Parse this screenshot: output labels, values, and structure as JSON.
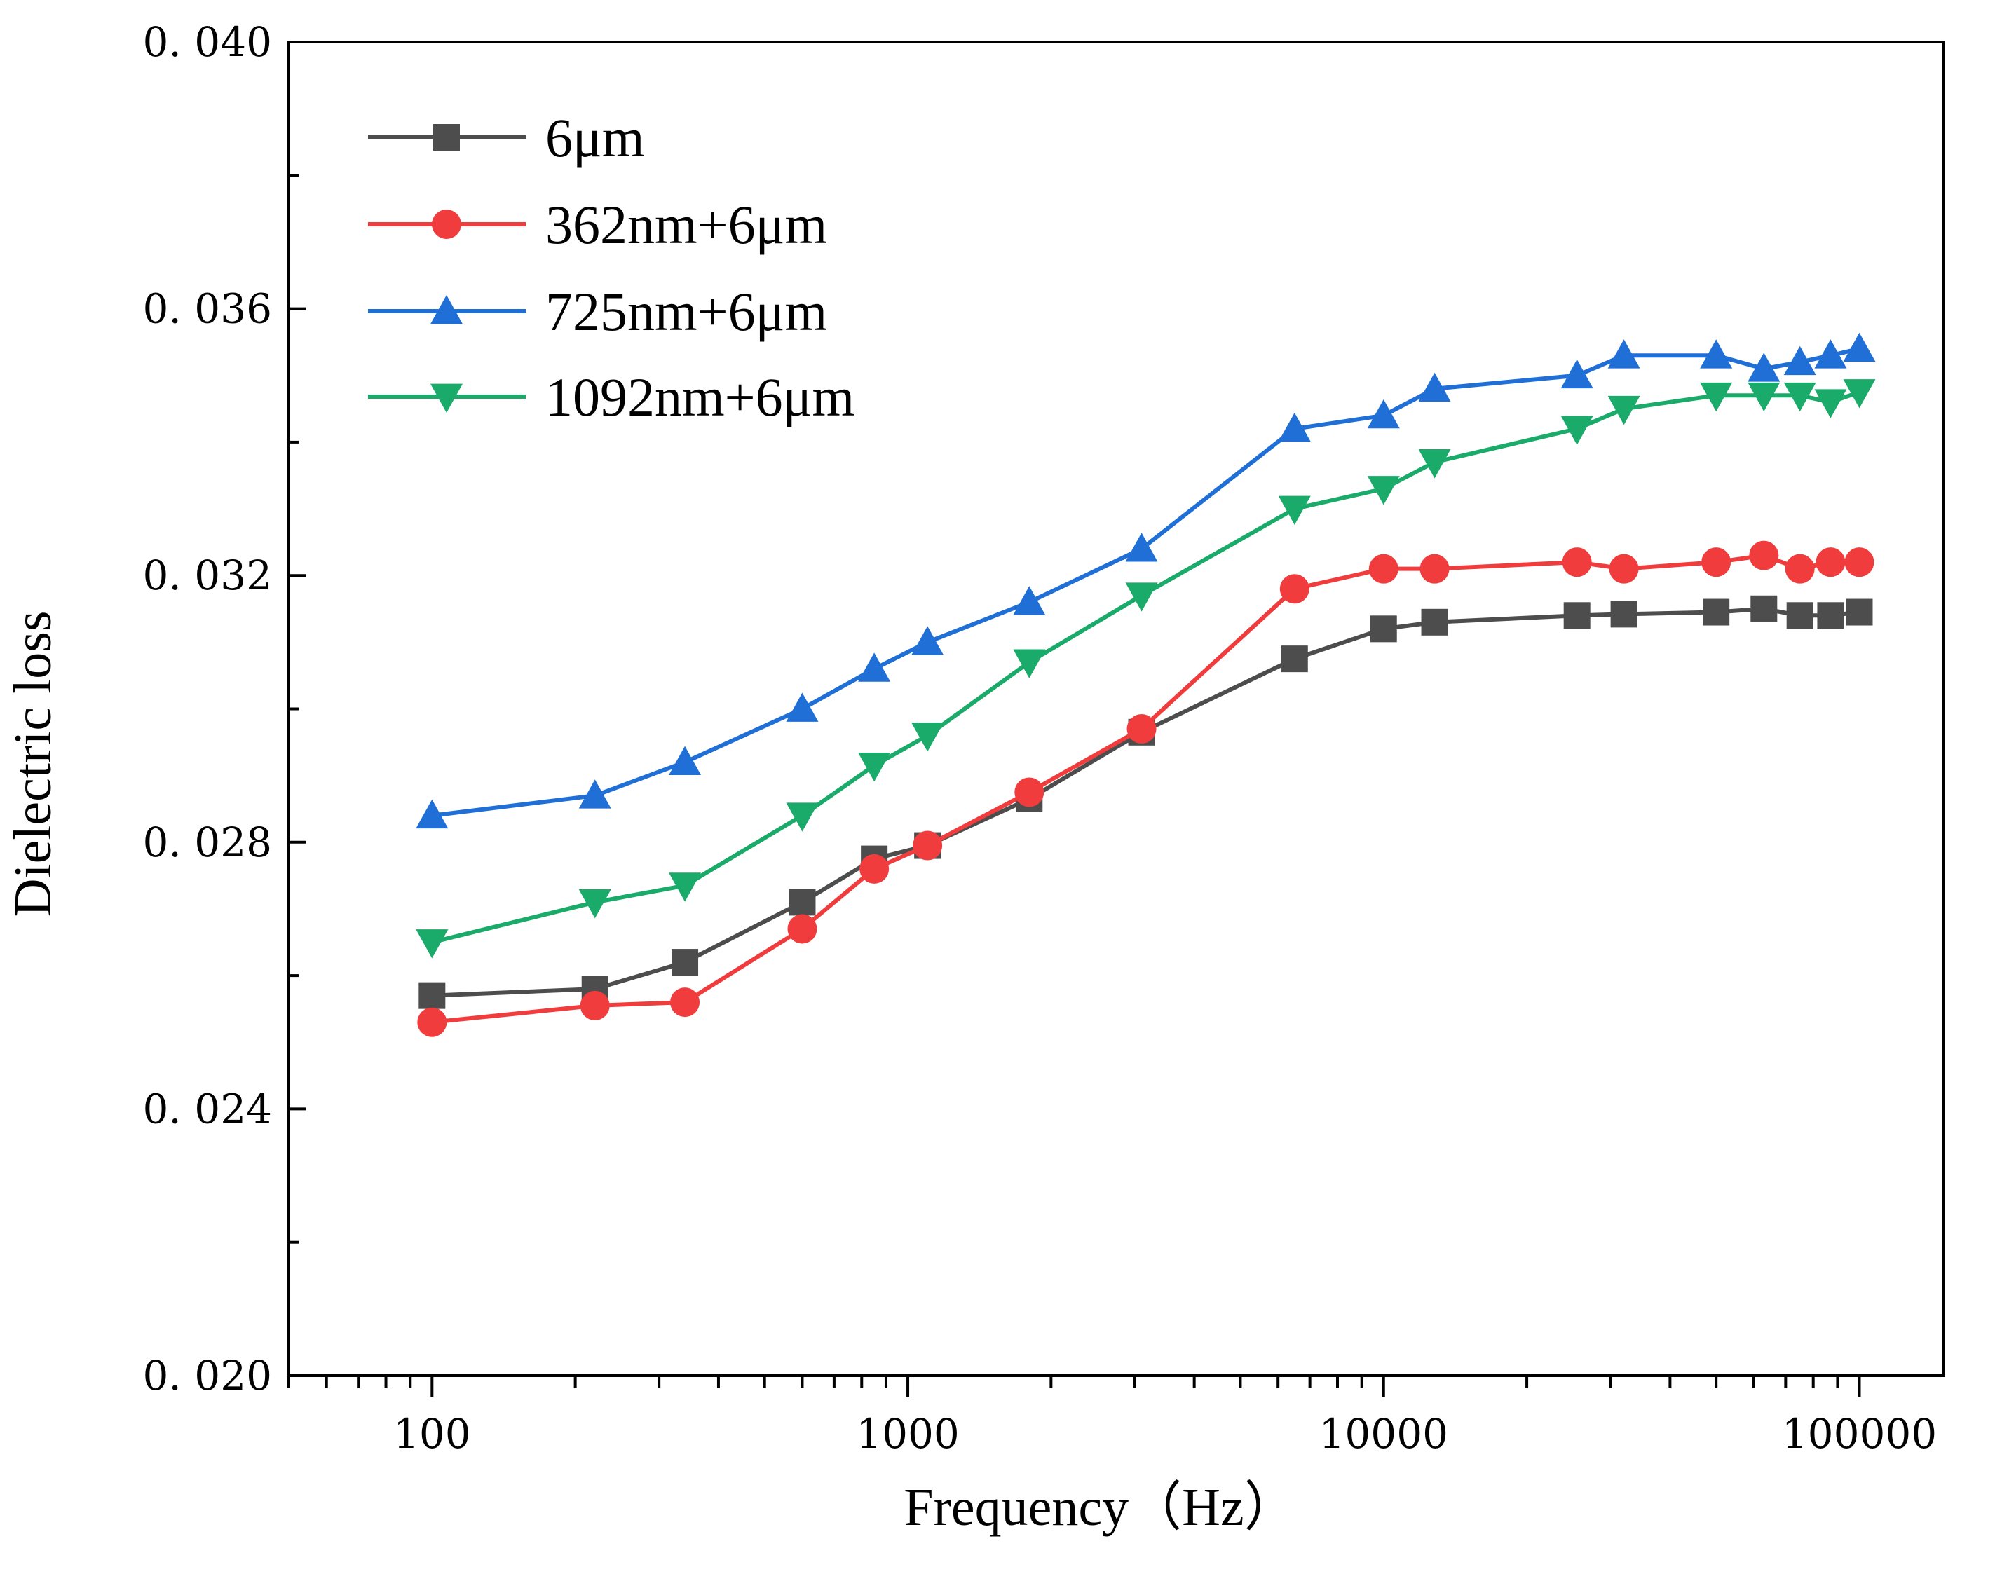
{
  "chart_data": {
    "type": "line",
    "title": "",
    "xlabel": "Frequency（Hz）",
    "ylabel": "Dielectric loss",
    "xscale": "log",
    "xlim": [
      50,
      150000
    ],
    "ylim": [
      0.02,
      0.04
    ],
    "x_ticks": [
      100,
      1000,
      10000,
      100000
    ],
    "x_tick_labels": [
      "100",
      "1000",
      "10000",
      "100000"
    ],
    "y_ticks": [
      0.02,
      0.024,
      0.028,
      0.032,
      0.036,
      0.04
    ],
    "y_tick_labels": [
      "0. 020",
      "0. 024",
      "0. 028",
      "0. 032",
      "0. 036",
      "0. 040"
    ],
    "grid": false,
    "legend_position": "top-left",
    "x": [
      100,
      220,
      340,
      600,
      850,
      1100,
      1800,
      3100,
      6500,
      10000,
      12800,
      25500,
      32000,
      50000,
      63000,
      75000,
      87000,
      100000
    ],
    "series": [
      {
        "name": "6μm",
        "color": "#4d4d4d",
        "marker": "square",
        "values": [
          0.0257,
          0.0258,
          0.0262,
          0.0271,
          0.02775,
          0.02795,
          0.02865,
          0.02965,
          0.03075,
          0.0312,
          0.0313,
          0.0314,
          0.03142,
          0.03145,
          0.0315,
          0.0314,
          0.0314,
          0.03145
        ]
      },
      {
        "name": "362nm+6μm",
        "color": "#f03c3c",
        "marker": "circle",
        "values": [
          0.0253,
          0.02555,
          0.0256,
          0.0267,
          0.0276,
          0.02795,
          0.02875,
          0.0297,
          0.0318,
          0.0321,
          0.0321,
          0.0322,
          0.0321,
          0.0322,
          0.0323,
          0.0321,
          0.0322,
          0.0322
        ]
      },
      {
        "name": "725nm+6μm",
        "color": "#1f6fd6",
        "marker": "triangle-up",
        "values": [
          0.0284,
          0.0287,
          0.0292,
          0.03,
          0.0306,
          0.031,
          0.0316,
          0.0324,
          0.0342,
          0.0344,
          0.0348,
          0.035,
          0.0353,
          0.0353,
          0.0351,
          0.0352,
          0.0353,
          0.0354
        ]
      },
      {
        "name": "1092nm+6μm",
        "color": "#1aaa6a",
        "marker": "triangle-down",
        "values": [
          0.0265,
          0.0271,
          0.02735,
          0.0284,
          0.02915,
          0.0296,
          0.0307,
          0.0317,
          0.033,
          0.0333,
          0.0337,
          0.0342,
          0.0345,
          0.0347,
          0.0347,
          0.0347,
          0.0346,
          0.03475
        ]
      }
    ]
  }
}
